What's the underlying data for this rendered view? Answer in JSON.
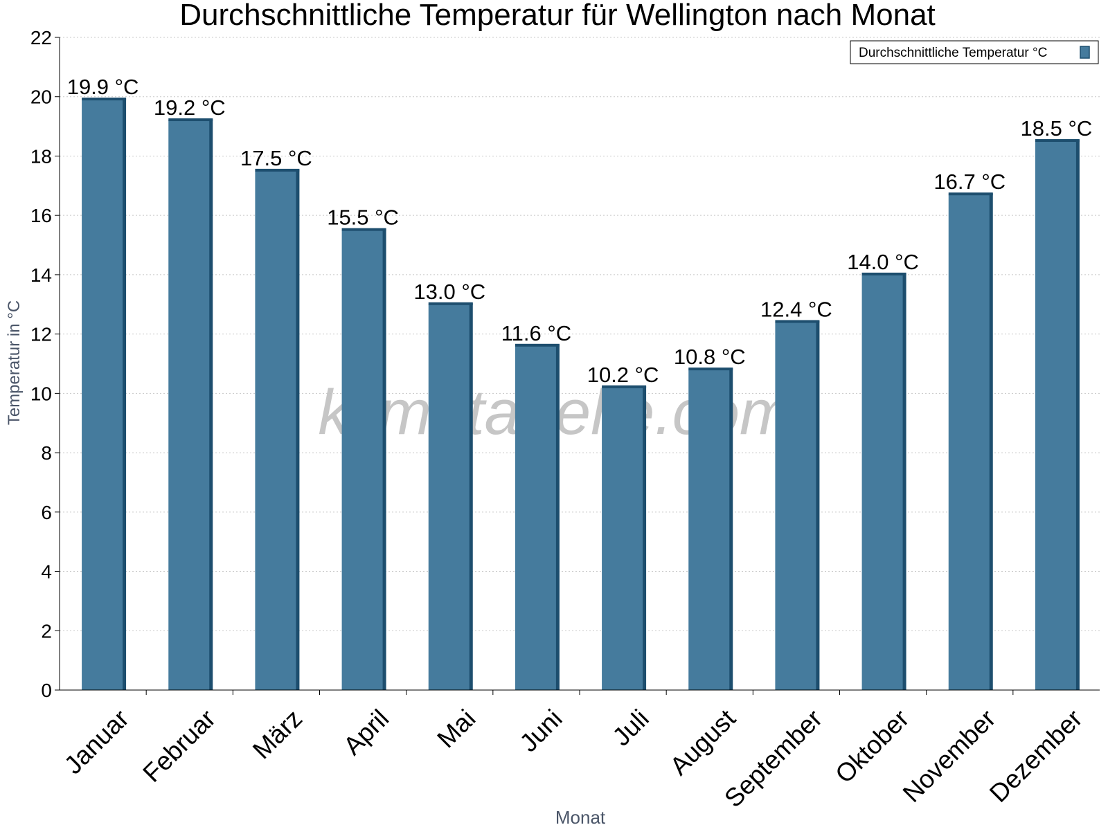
{
  "chart_data": {
    "type": "bar",
    "title": "Durchschnittliche Temperatur für Wellington nach Monat",
    "xlabel": "Monat",
    "ylabel": "Temperatur in °C",
    "categories": [
      "Januar",
      "Februar",
      "März",
      "April",
      "Mai",
      "Juni",
      "Juli",
      "August",
      "September",
      "Oktober",
      "November",
      "Dezember"
    ],
    "series": [
      {
        "name": "Durchschnittliche Temperatur °C",
        "values": [
          19.9,
          19.2,
          17.5,
          15.5,
          13.0,
          11.6,
          10.2,
          10.8,
          12.4,
          14.0,
          16.7,
          18.5
        ]
      }
    ],
    "data_labels": [
      "19.9 °C",
      "19.2 °C",
      "17.5 °C",
      "15.5 °C",
      "13.0 °C",
      "11.6 °C",
      "10.2 °C",
      "10.8 °C",
      "12.4 °C",
      "14.0 °C",
      "16.7 °C",
      "18.5 °C"
    ],
    "ylim": [
      0,
      22
    ],
    "yticks": [
      0,
      2,
      4,
      6,
      8,
      10,
      12,
      14,
      16,
      18,
      20,
      22
    ],
    "grid": true,
    "legend_position": "top-right",
    "colors": {
      "bar": "#457b9d",
      "bar_side": "#1d4e6e",
      "axis_label": "#4a5568",
      "watermark": "#c0c0c0"
    }
  },
  "watermark": "klimatabelle.com"
}
